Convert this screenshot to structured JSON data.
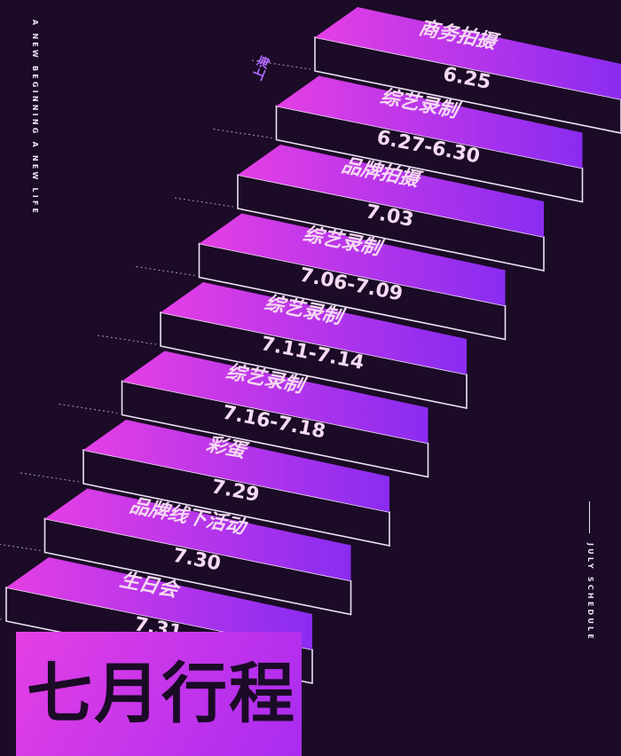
{
  "title": "七月行程",
  "left_tagline": "A NEW BEGINNING A NEW LIFE",
  "right_tagline": "JULY SCHEDULE",
  "city": "上海",
  "colors": {
    "background": "#1b0b26",
    "accent_magenta": "#e43fe4",
    "accent_violet": "#8a2cf0",
    "date_text": "#f6d9f2"
  },
  "steps": [
    {
      "event": "生日会",
      "date": "7.31"
    },
    {
      "event": "品牌线下活动",
      "date": "7.30"
    },
    {
      "event": "彩蛋",
      "date": "7.29"
    },
    {
      "event": "综艺录制",
      "date": "7.16-7.18"
    },
    {
      "event": "综艺录制",
      "date": "7.11-7.14"
    },
    {
      "event": "综艺录制",
      "date": "7.06-7.09"
    },
    {
      "event": "品牌拍摄",
      "date": "7.03"
    },
    {
      "event": "综艺录制",
      "date": "6.27-6.30"
    },
    {
      "event": "商务拍摄",
      "date": "6.25"
    }
  ]
}
